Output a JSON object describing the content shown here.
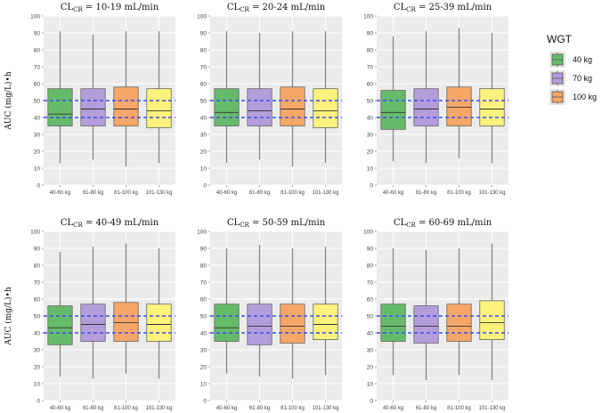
{
  "chart_data": [
    {
      "type": "box",
      "title_main": "CL",
      "title_sub": "CR",
      "title_rest": " = 10-19 mL/min",
      "ylabel": "AUC (mg/L)•h",
      "ylim": [
        0,
        100
      ],
      "yticks": [
        0,
        10,
        20,
        30,
        40,
        50,
        60,
        70,
        80,
        90,
        100
      ],
      "categories": [
        "40-60 kg",
        "61-80 kg",
        "81-100 kg",
        "101-130 kg"
      ],
      "reference_lines": [
        40,
        50
      ],
      "boxes": [
        {
          "min": 13,
          "q1": 35,
          "median": 42,
          "q3": 57,
          "max": 91
        },
        {
          "min": 15,
          "q1": 35,
          "median": 45,
          "q3": 57,
          "max": 89
        },
        {
          "min": 11,
          "q1": 35,
          "median": 45,
          "q3": 58,
          "max": 91
        },
        {
          "min": 13,
          "q1": 34,
          "median": 44,
          "q3": 57,
          "max": 91
        }
      ]
    },
    {
      "type": "box",
      "title_main": "CL",
      "title_sub": "CR",
      "title_rest": " = 20-24 mL/min",
      "ylabel": "",
      "ylim": [
        0,
        100
      ],
      "yticks": [
        0,
        10,
        20,
        30,
        40,
        50,
        60,
        70,
        80,
        90,
        100
      ],
      "categories": [
        "40-60 kg",
        "61-80 kg",
        "81-100 kg",
        "101-130 kg"
      ],
      "reference_lines": [
        40,
        50
      ],
      "boxes": [
        {
          "min": 13,
          "q1": 35,
          "median": 43,
          "q3": 57,
          "max": 91
        },
        {
          "min": 15,
          "q1": 35,
          "median": 44,
          "q3": 57,
          "max": 90
        },
        {
          "min": 11,
          "q1": 35,
          "median": 45,
          "q3": 58,
          "max": 91
        },
        {
          "min": 13,
          "q1": 34,
          "median": 44,
          "q3": 57,
          "max": 91
        }
      ]
    },
    {
      "type": "box",
      "title_main": "CL",
      "title_sub": "CR",
      "title_rest": " = 25-39 mL/min",
      "ylabel": "",
      "ylim": [
        0,
        100
      ],
      "yticks": [
        0,
        10,
        20,
        30,
        40,
        50,
        60,
        70,
        80,
        90,
        100
      ],
      "categories": [
        "40-60 kg",
        "61-80 kg",
        "81-100 kg",
        "101-130 kg"
      ],
      "reference_lines": [
        40,
        50
      ],
      "boxes": [
        {
          "min": 14,
          "q1": 33,
          "median": 43,
          "q3": 56,
          "max": 88
        },
        {
          "min": 13,
          "q1": 35,
          "median": 45,
          "q3": 57,
          "max": 91
        },
        {
          "min": 16,
          "q1": 35,
          "median": 46,
          "q3": 58,
          "max": 93
        },
        {
          "min": 13,
          "q1": 35,
          "median": 45,
          "q3": 57,
          "max": 90
        }
      ]
    },
    {
      "type": "box",
      "title_main": "CL",
      "title_sub": "CR",
      "title_rest": " = 40-49 mL/min",
      "ylabel": "AUC (mg/L)•h",
      "ylim": [
        0,
        100
      ],
      "yticks": [
        0,
        10,
        20,
        30,
        40,
        50,
        60,
        70,
        80,
        90,
        100
      ],
      "categories": [
        "40-60 kg",
        "61-80 kg",
        "81-100 kg",
        "101-130 kg"
      ],
      "reference_lines": [
        40,
        50
      ],
      "boxes": [
        {
          "min": 14,
          "q1": 33,
          "median": 43,
          "q3": 56,
          "max": 88
        },
        {
          "min": 13,
          "q1": 35,
          "median": 45,
          "q3": 57,
          "max": 91
        },
        {
          "min": 16,
          "q1": 35,
          "median": 46,
          "q3": 58,
          "max": 93
        },
        {
          "min": 13,
          "q1": 35,
          "median": 45,
          "q3": 57,
          "max": 90
        }
      ]
    },
    {
      "type": "box",
      "title_main": "CL",
      "title_sub": "CR",
      "title_rest": " = 50-59 mL/min",
      "ylabel": "",
      "ylim": [
        0,
        100
      ],
      "yticks": [
        0,
        10,
        20,
        30,
        40,
        50,
        60,
        70,
        80,
        90,
        100
      ],
      "categories": [
        "40-60 kg",
        "61-80 kg",
        "81-100 kg",
        "101-130 kg"
      ],
      "reference_lines": [
        40,
        50
      ],
      "boxes": [
        {
          "min": 16,
          "q1": 35,
          "median": 43,
          "q3": 57,
          "max": 90
        },
        {
          "min": 14,
          "q1": 33,
          "median": 44,
          "q3": 57,
          "max": 92
        },
        {
          "min": 13,
          "q1": 34,
          "median": 44,
          "q3": 57,
          "max": 90
        },
        {
          "min": 15,
          "q1": 36,
          "median": 45,
          "q3": 57,
          "max": 91
        }
      ]
    },
    {
      "type": "box",
      "title_main": "CL",
      "title_sub": "CR",
      "title_rest": " = 60-69 mL/min",
      "ylabel": "",
      "ylim": [
        0,
        100
      ],
      "yticks": [
        0,
        10,
        20,
        30,
        40,
        50,
        60,
        70,
        80,
        90,
        100
      ],
      "categories": [
        "40-60 kg",
        "61-80 kg",
        "81-100 kg",
        "101-130 kg"
      ],
      "reference_lines": [
        40,
        50
      ],
      "boxes": [
        {
          "min": 15,
          "q1": 35,
          "median": 44,
          "q3": 57,
          "max": 90
        },
        {
          "min": 12,
          "q1": 34,
          "median": 44,
          "q3": 56,
          "max": 89
        },
        {
          "min": 15,
          "q1": 35,
          "median": 44,
          "q3": 57,
          "max": 90
        },
        {
          "min": 12,
          "q1": 36,
          "median": 46,
          "q3": 59,
          "max": 93
        }
      ]
    }
  ],
  "legend": {
    "title": "WGT",
    "items": [
      {
        "label": "40 kg",
        "color": "#66bb6a"
      },
      {
        "label": "70 kg",
        "color": "#b39ddb"
      },
      {
        "label": "100 kg",
        "color": "#f5a767"
      }
    ]
  },
  "colors": {
    "panel_bg": "#ebebeb",
    "grid": "#ffffff",
    "box_fills": [
      "#66bb6a",
      "#b39ddb",
      "#f5a767",
      "#fdf27c"
    ],
    "reference_line": "#3a4df0",
    "whisker": "#888888",
    "box_stroke": "#555555"
  }
}
